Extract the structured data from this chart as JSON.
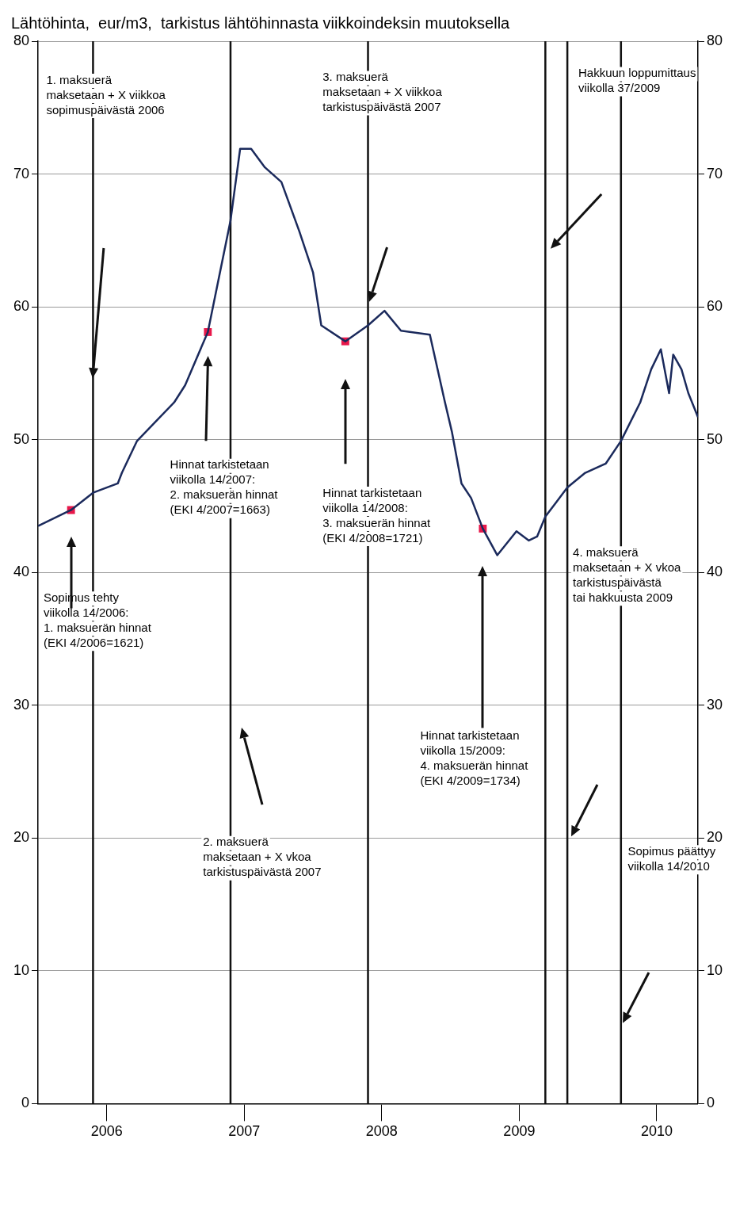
{
  "chart_data": {
    "type": "line",
    "title": "Lähtöhinta,  eur/m3,  tarkistus lähtöhinnasta viikkoindeksin muutoksella",
    "series": [
      {
        "color": "#1b2a5c",
        "marker": "none",
        "x": [
          2006.0,
          2006.24,
          2006.4,
          2006.58,
          2006.61,
          2006.72,
          2006.85,
          2006.99,
          2007.07,
          2007.235,
          2007.4,
          2007.47,
          2007.55,
          2007.65,
          2007.77,
          2007.9,
          2008.0,
          2008.06,
          2008.235,
          2008.4,
          2008.52,
          2008.64,
          2008.85,
          2008.96,
          2009.01,
          2009.08,
          2009.15,
          2009.235,
          2009.34,
          2009.48,
          2009.57,
          2009.63,
          2009.69,
          2009.77,
          2009.85,
          2009.98,
          2010.13,
          2010.24,
          2010.38,
          2010.46,
          2010.53,
          2010.59,
          2010.62,
          2010.68,
          2010.73,
          2010.8
        ],
        "values": [
          43.5,
          44.7,
          46.0,
          46.7,
          47.5,
          49.9,
          51.3,
          52.8,
          54.1,
          58.1,
          66.5,
          71.9,
          71.9,
          70.5,
          69.4,
          65.7,
          62.6,
          58.6,
          57.4,
          58.6,
          59.7,
          58.2,
          57.9,
          52.8,
          50.6,
          46.7,
          45.6,
          43.3,
          41.3,
          43.1,
          42.4,
          42.7,
          44.2,
          45.3,
          46.4,
          47.5,
          48.2,
          49.9,
          52.8,
          55.3,
          56.8,
          53.5,
          56.4,
          55.3,
          53.5,
          51.7
        ]
      },
      {
        "type": "scatter",
        "color": "#e8174a",
        "marker": "square",
        "x": [
          2006.24,
          2007.235,
          2008.235,
          2009.235
        ],
        "values": [
          44.7,
          58.1,
          57.4,
          43.3
        ]
      }
    ],
    "xlim": [
      2006.0,
      2010.8
    ],
    "xticks": [
      {
        "value": 2006.5,
        "label": "2006"
      },
      {
        "value": 2007.5,
        "label": "2007"
      },
      {
        "value": 2008.5,
        "label": "2008"
      },
      {
        "value": 2009.5,
        "label": "2009"
      },
      {
        "value": 2010.5,
        "label": "2010"
      }
    ],
    "ylim": [
      0,
      80
    ],
    "yticks": [
      0,
      10,
      20,
      30,
      40,
      50,
      60,
      70,
      80
    ],
    "y2lim": [
      0,
      80
    ],
    "y2ticks": [
      0,
      10,
      20,
      30,
      40,
      50,
      60,
      70,
      80
    ],
    "grid": "y",
    "legend": false,
    "ref_lines": [
      {
        "axis": "x",
        "value": 2006.4,
        "color": "#111111"
      },
      {
        "axis": "x",
        "value": 2007.4,
        "color": "#111111"
      },
      {
        "axis": "x",
        "value": 2008.4,
        "color": "#111111"
      },
      {
        "axis": "x",
        "value": 2009.69,
        "color": "#111111"
      },
      {
        "axis": "x",
        "value": 2009.85,
        "color": "#111111"
      },
      {
        "axis": "x",
        "value": 2010.24,
        "color": "#111111"
      }
    ],
    "annotations": [
      "1. maksuerä\nmaksetaan + X viikkoa\nsopimuspäivästä 2006",
      "Sopimus tehty\nviikolla 14/2006:\n1. maksuerän hinnat\n(EKI 4/2006=1621)",
      "Hinnat tarkistetaan\nviikolla 14/2007:\n2. maksuerän hinnat\n(EKI 4/2007=1663)",
      "2. maksuerä\nmaksetaan + X vkoa\ntarkistuspäivästä 2007",
      "3. maksuerä\nmaksetaan + X viikkoa\ntarkistuspäivästä 2007",
      "Hinnat tarkistetaan\nviikolla 14/2008:\n3. maksuerän hinnat\n(EKI 4/2008=1721)",
      "Hinnat tarkistetaan\nviikolla 15/2009:\n4. maksuerän hinnat\n(EKI 4/2009=1734)",
      "Hakkuun loppumittaus\nviikolla 37/2009",
      "4. maksuerä\nmaksetaan + X vkoa\ntarkistuspäivästä\ntai hakkuusta 2009",
      "Sopimus päättyy\nviikolla 14/2010"
    ]
  }
}
